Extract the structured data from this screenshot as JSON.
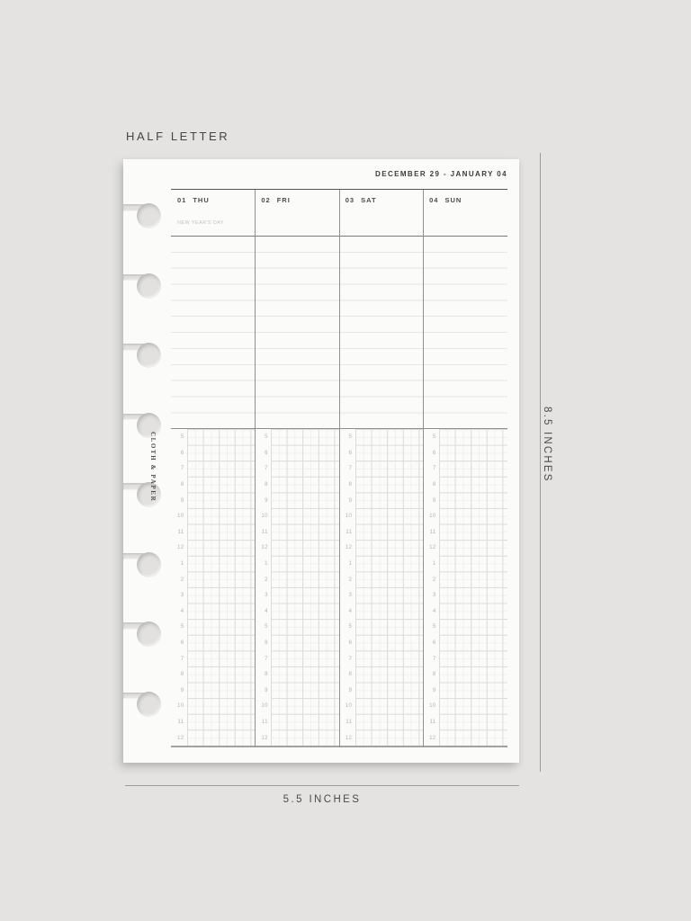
{
  "annotations": {
    "size_label": "HALF LETTER",
    "height_label": "8.5 INCHES",
    "width_label": "5.5 INCHES"
  },
  "planner": {
    "brand": "CLOTH & PAPER",
    "date_range": "DECEMBER 29 - JANUARY 04",
    "punch_holes": 8,
    "days": [
      {
        "num": "01",
        "name": "THU",
        "note": "NEW YEAR'S DAY"
      },
      {
        "num": "02",
        "name": "FRI",
        "note": ""
      },
      {
        "num": "03",
        "name": "SAT",
        "note": ""
      },
      {
        "num": "04",
        "name": "SUN",
        "note": ""
      }
    ],
    "hours": [
      "5",
      "6",
      "7",
      "8",
      "9",
      "10",
      "11",
      "12",
      "1",
      "2",
      "3",
      "4",
      "5",
      "6",
      "7",
      "8",
      "9",
      "10",
      "11",
      "12"
    ]
  },
  "colors": {
    "background": "#e4e3e1",
    "paper": "#fbfbf9",
    "ink_dark": "#3c3c3c",
    "ink_mid": "#8f8f8f",
    "ink_light": "#c2c2bf",
    "grid_line": "#dcdcda",
    "dimension_line": "#9b9b9b"
  }
}
